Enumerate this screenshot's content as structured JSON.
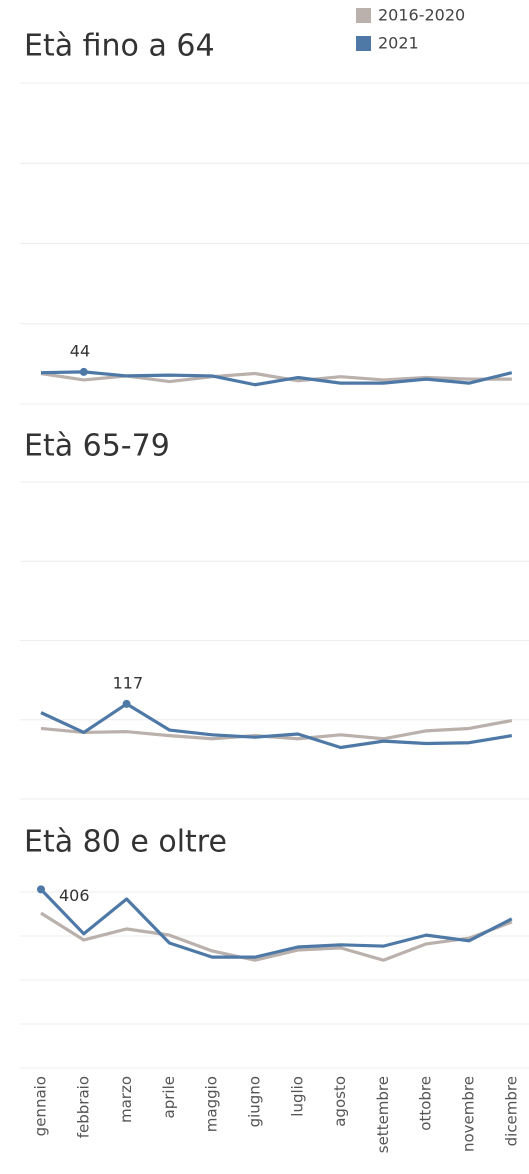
{
  "chart_data": [
    {
      "type": "line",
      "title": "Età fino a 64",
      "ylim": [
        40,
        80
      ],
      "yticks": [
        40,
        50,
        60,
        70,
        80
      ],
      "grid": true,
      "legend": "top-right",
      "series": [
        {
          "name": "2016-2020",
          "color": "#bab0ac",
          "values": [
            43.8,
            43,
            43.5,
            42.8,
            43.4,
            43.8,
            42.9,
            43.4,
            43,
            43.3,
            43.1,
            43.1
          ]
        },
        {
          "name": "2021",
          "color": "#4e79a7",
          "values": [
            43.9,
            44,
            43.5,
            43.6,
            43.5,
            42.4,
            43.3,
            42.6,
            42.6,
            43.1,
            42.6,
            43.9
          ]
        }
      ]
    },
    {
      "type": "line",
      "title": "Età 65-79",
      "ylim": [
        105,
        145
      ],
      "yticks": [
        105,
        115,
        125,
        135,
        145
      ],
      "grid": true,
      "series": [
        {
          "color": "#bab0ac",
          "values": [
            113.9,
            113.4,
            113.5,
            113,
            112.6,
            113,
            112.6,
            113.1,
            112.6,
            113.6,
            113.9,
            114.9
          ]
        },
        {
          "color": "#4e79a7",
          "values": [
            115.9,
            113.4,
            117,
            113.7,
            113.1,
            112.8,
            113.2,
            111.5,
            112.3,
            112,
            112.1,
            113
          ]
        }
      ]
    },
    {
      "type": "line",
      "title": "Età 80 e oltre",
      "ylim": [
        0,
        450
      ],
      "yticks": [
        0,
        100,
        200,
        300,
        400
      ],
      "grid": true,
      "categories": [
        "gennaio",
        "febbraio",
        "marzo",
        "aprile",
        "maggio",
        "giugno",
        "luglio",
        "agosto",
        "settembre",
        "ottobre",
        "novembre",
        "dicembre"
      ],
      "series": [
        {
          "color": "#bab0ac",
          "values": [
            352,
            291,
            316,
            302,
            266,
            245,
            268,
            273,
            245,
            282,
            295,
            332
          ]
        },
        {
          "color": "#4e79a7",
          "values": [
            406,
            305,
            384,
            284,
            252,
            252,
            275,
            280,
            277,
            302,
            289,
            339
          ]
        }
      ]
    }
  ]
}
